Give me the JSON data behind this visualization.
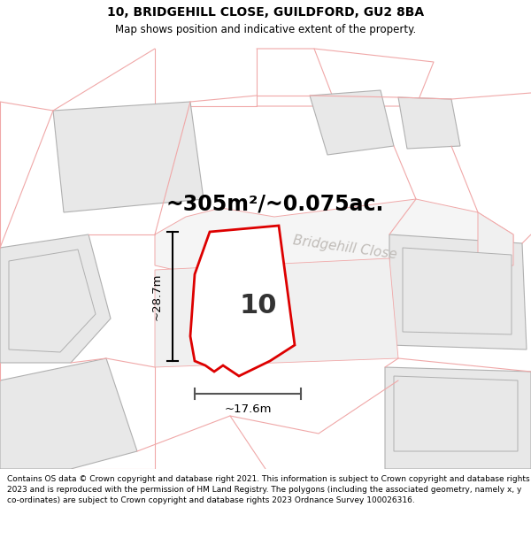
{
  "title_line1": "10, BRIDGEHILL CLOSE, GUILDFORD, GU2 8BA",
  "title_line2": "Map shows position and indicative extent of the property.",
  "area_label": "~305m²/~0.075ac.",
  "property_number": "10",
  "dim_width": "~17.6m",
  "dim_height": "~28.7m",
  "street_label": "Bridgehill Close",
  "footer_text": "Contains OS data © Crown copyright and database right 2021. This information is subject to Crown copyright and database rights 2023 and is reproduced with the permission of HM Land Registry. The polygons (including the associated geometry, namely x, y co-ordinates) are subject to Crown copyright and database rights 2023 Ordnance Survey 100026316.",
  "map_bg": "#ffffff",
  "building_fill": "#e8e8e8",
  "building_edge": "#b0b0b0",
  "road_fill": "#efefef",
  "plot_stroke": "#dd0000",
  "plot_stroke_lw": 2.0,
  "dim_line_color": "#555555",
  "street_color": "#c0bcb8",
  "other_stroke": "#f0a8a8",
  "other_lw": 0.8,
  "title_fontsize": 10,
  "subtitle_fontsize": 8.5,
  "area_fontsize": 17,
  "number_fontsize": 22,
  "dim_fontsize": 9.5,
  "street_fontsize": 11,
  "footer_fontsize": 6.5
}
